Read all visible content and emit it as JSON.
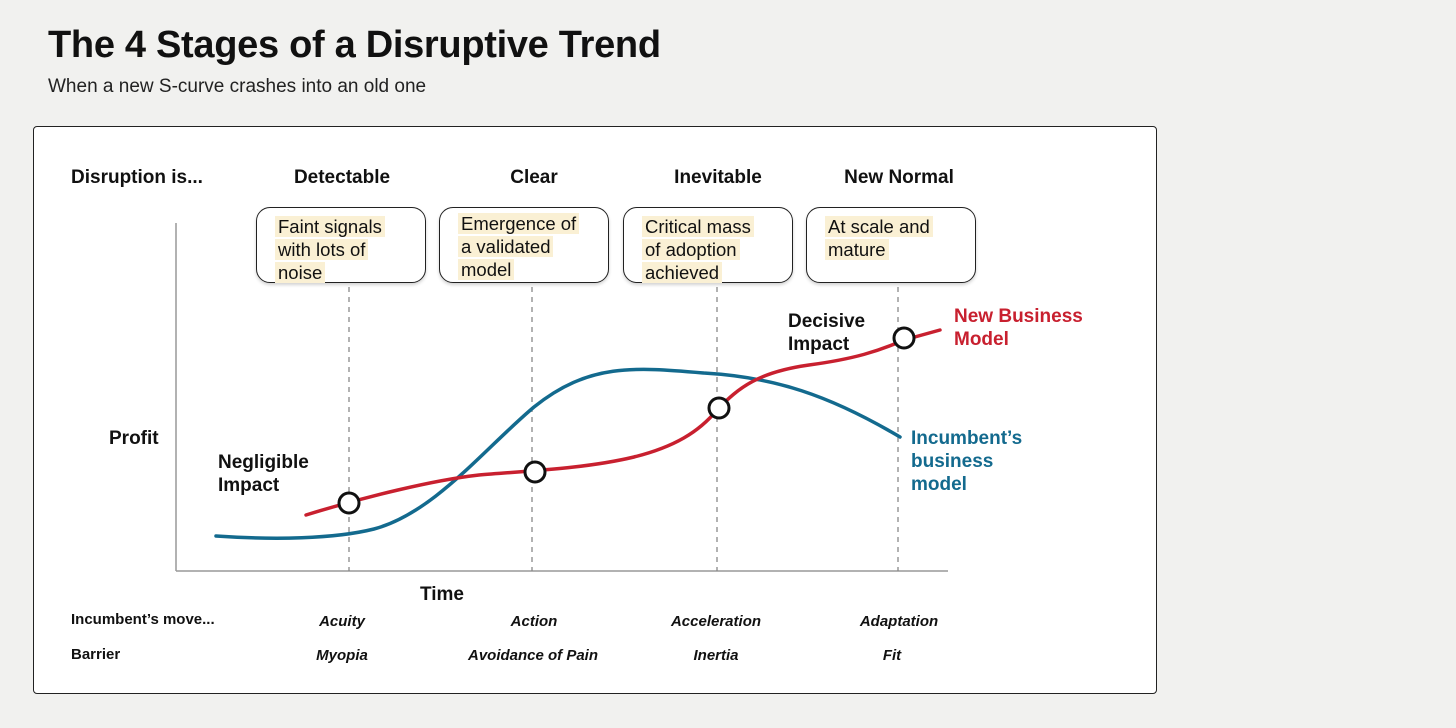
{
  "header": {
    "title": "The 4 Stages of a Disruptive Trend",
    "subtitle": "When a new S-curve crashes into an old one"
  },
  "diagram": {
    "row_label": "Disruption is...",
    "stages": [
      {
        "name": "Detectable",
        "note": [
          "Faint signals",
          "with lots of",
          "noise"
        ],
        "move": "Acuity",
        "barrier": "Myopia"
      },
      {
        "name": "Clear",
        "note": [
          "Emergence of",
          "a validated",
          "model"
        ],
        "move": "Action",
        "barrier": "Avoidance of Pain"
      },
      {
        "name": "Inevitable",
        "note": [
          "Critical mass",
          "of adoption",
          "achieved"
        ],
        "move": "Acceleration",
        "barrier": "Inertia"
      },
      {
        "name": "New Normal",
        "note": [
          "At scale and",
          "mature"
        ],
        "move": "Adaptation",
        "barrier": "Fit"
      }
    ],
    "y_axis_label": "Profit",
    "x_axis_label": "Time",
    "impact_low": [
      "Negligible",
      "Impact"
    ],
    "impact_high": [
      "Decisive",
      "Impact"
    ],
    "new_curve_label": [
      "New Business",
      "Model"
    ],
    "incumbent_curve_label": [
      "Incumbent’s",
      "business",
      "model"
    ],
    "moves_row_label": "Incumbent’s move...",
    "barrier_row_label": "Barrier",
    "colors": {
      "new_model": "#c8202f",
      "incumbent_model": "#136a8e",
      "note_highlight": "#faf0d4",
      "guide_line": "#888888"
    }
  }
}
